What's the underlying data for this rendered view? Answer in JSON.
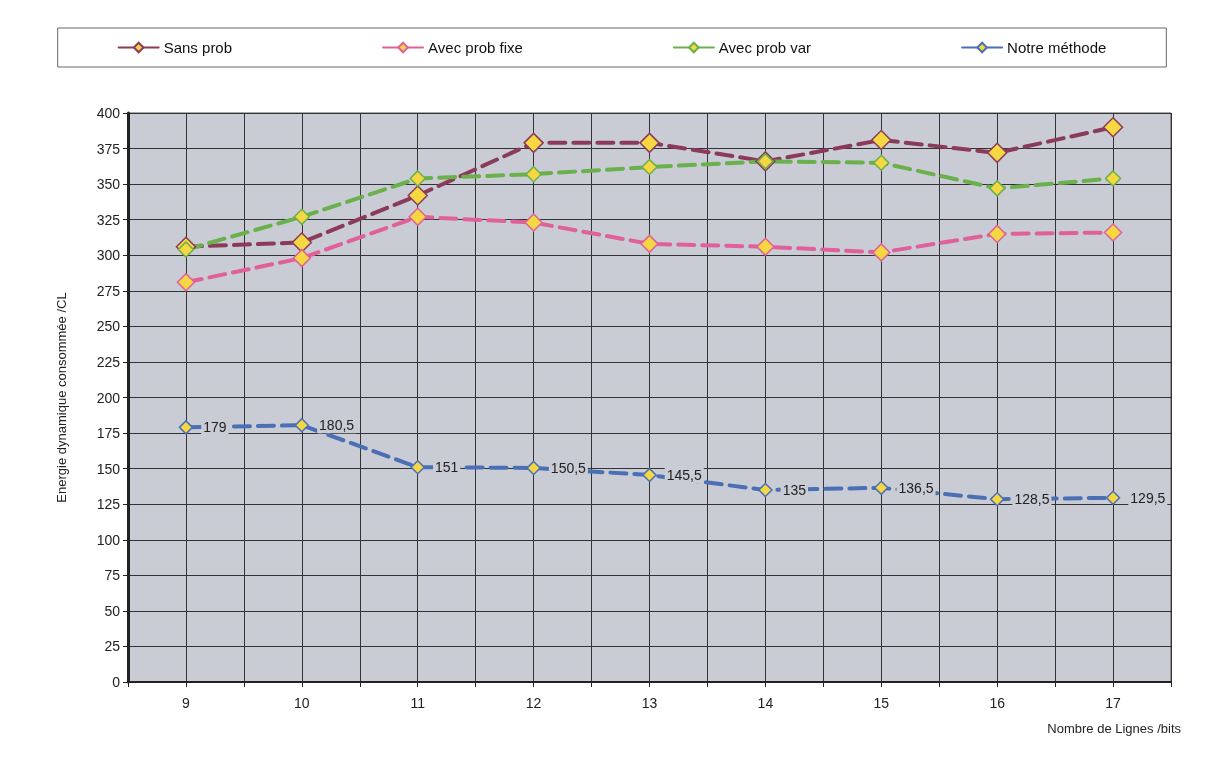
{
  "chart_data": {
    "type": "line",
    "xlabel": "Nombre de Lignes /bits",
    "ylabel": "Energie dynamique consommée /CL",
    "x": [
      9,
      10,
      11,
      12,
      13,
      14,
      15,
      16,
      17
    ],
    "xlim": [
      8.5,
      17.5
    ],
    "xticks": [
      {
        "value": 8.5,
        "label": null
      },
      9,
      {
        "value": 9.5,
        "label": null
      },
      10,
      {
        "value": 10.5,
        "label": null
      },
      11,
      {
        "value": 11.5,
        "label": null
      },
      12,
      {
        "value": 12.5,
        "label": null
      },
      13,
      {
        "value": 13.5,
        "label": null
      },
      14,
      {
        "value": 14.5,
        "label": null
      },
      15,
      {
        "value": 15.5,
        "label": null
      },
      16,
      {
        "value": 16.5,
        "label": null
      },
      17,
      {
        "value": 17.5,
        "label": null
      }
    ],
    "ylim": [
      0,
      400
    ],
    "yticks": [
      0,
      25,
      50,
      75,
      100,
      125,
      150,
      175,
      200,
      225,
      250,
      275,
      300,
      325,
      350,
      375,
      400
    ],
    "series": [
      {
        "name": "Sans prob",
        "color": "#8b3a5a",
        "values": [
          306,
          309,
          342,
          379,
          379,
          366,
          381,
          372,
          390
        ]
      },
      {
        "name": "Avec prob fixe",
        "color": "#e0609a",
        "values": [
          281,
          298,
          327,
          323,
          308,
          306,
          302,
          315,
          316
        ]
      },
      {
        "name": "Avec prob var",
        "color": "#6ab04c",
        "values": [
          304,
          327,
          354,
          357,
          362,
          366,
          365,
          347,
          354
        ]
      },
      {
        "name": "Notre méthode",
        "color": "#4a6fb5",
        "values": [
          179,
          180.5,
          151,
          150.5,
          145.5,
          135,
          136.5,
          128.5,
          129.5
        ],
        "value_labels": [
          "179",
          "180,5",
          "151",
          "150,5",
          "145,5",
          "135",
          "136,5",
          "128,5",
          "129,5"
        ]
      }
    ],
    "grid": true,
    "legend": "top",
    "marker": "diamond",
    "line_style": "dashed"
  }
}
